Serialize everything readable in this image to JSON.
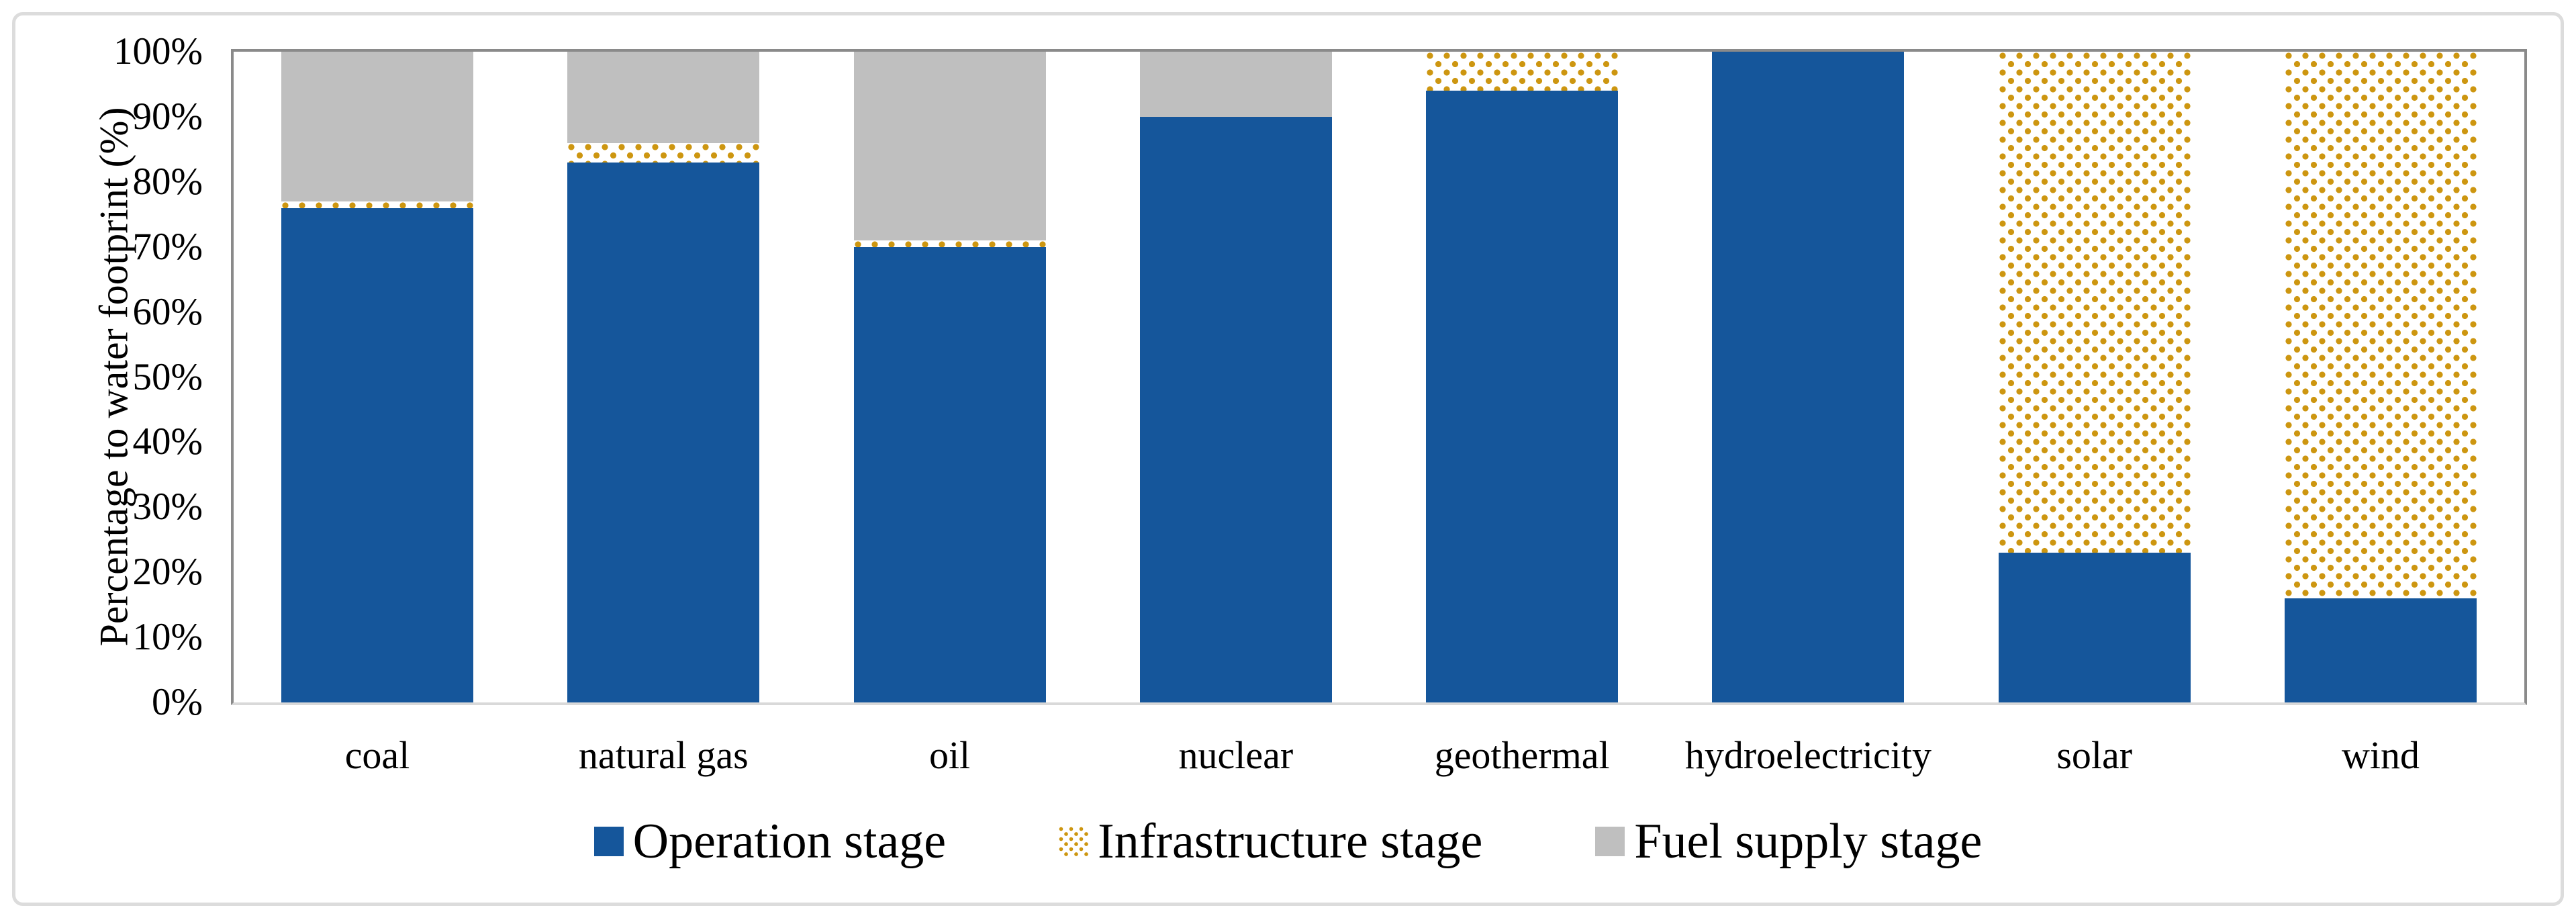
{
  "figure": {
    "y_axis_title": "Percentage to water footprint (%)"
  },
  "colors": {
    "operation_blue": "#15569b",
    "infrastructure_orange": "#cd9610",
    "fuel_supply_gray": "#bfbfbf",
    "plot_border_dark": "#8a8a8a",
    "baseline_light": "#d9d9d9",
    "outer_frame": "#dcdcdc"
  },
  "legend": {
    "items": [
      {
        "key": "operation",
        "label": "Operation stage",
        "swatch": "solid-blue-square"
      },
      {
        "key": "infrastructure",
        "label": "Infrastructure stage",
        "swatch": "orange-dotted-square"
      },
      {
        "key": "fuel_supply",
        "label": "Fuel supply stage",
        "swatch": "solid-gray-square"
      }
    ]
  },
  "chart_data": {
    "type": "bar",
    "stacked": true,
    "orientation": "vertical",
    "title": "",
    "xlabel": "",
    "ylabel": "Percentage to water footprint (%)",
    "ylim": [
      0,
      100
    ],
    "ytick_step": 10,
    "ytick_labels": [
      "100%",
      "90%",
      "80%",
      "70%",
      "60%",
      "50%",
      "40%",
      "30%",
      "20%",
      "10%",
      "0%"
    ],
    "grid": false,
    "legend_position": "bottom",
    "categories": [
      "coal",
      "natural gas",
      "oil",
      "nuclear",
      "geothermal",
      "hydroelectricity",
      "solar",
      "wind"
    ],
    "series": [
      {
        "key": "operation",
        "name": "Operation stage",
        "values": [
          76,
          83,
          70,
          90,
          94,
          100,
          23,
          16
        ]
      },
      {
        "key": "infrastructure",
        "name": "Infrastructure stage",
        "values": [
          1,
          3,
          1,
          0,
          6,
          0,
          77,
          84
        ]
      },
      {
        "key": "fuel_supply",
        "name": "Fuel supply stage",
        "values": [
          23,
          14,
          29,
          10,
          0,
          0,
          0,
          0
        ]
      }
    ]
  }
}
